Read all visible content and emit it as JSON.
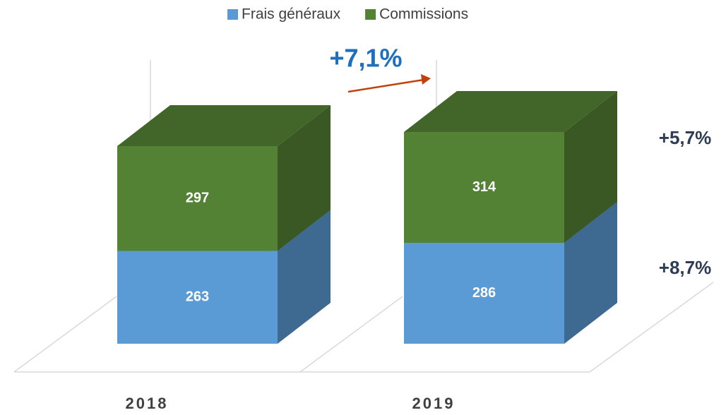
{
  "chart_data": {
    "type": "bar3d_stacked",
    "categories": [
      "2018",
      "2019"
    ],
    "series": [
      {
        "name": "Frais généraux",
        "color": "#5b9bd5",
        "values": [
          263,
          286
        ]
      },
      {
        "name": "Commissions",
        "color": "#548235",
        "values": [
          297,
          314
        ]
      }
    ],
    "ylim": [
      0,
      700
    ],
    "legend": "top",
    "annotations": [
      "+7,1%",
      "+5,7%",
      "+8,7%"
    ]
  }
}
